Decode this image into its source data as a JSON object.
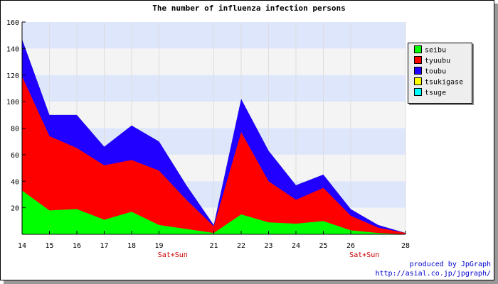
{
  "title": "The number of influenza infection persons",
  "credits": [
    "produced by JpGraph",
    "http://asial.co.jp/jpgraph/"
  ],
  "chart_data": {
    "type": "area",
    "stacked": true,
    "x": [
      14,
      15,
      16,
      17,
      18,
      19,
      20,
      21,
      22,
      23,
      24,
      25,
      26,
      27,
      28
    ],
    "xticks": [
      14,
      15,
      16,
      17,
      18,
      19,
      21,
      22,
      23,
      24,
      25,
      26,
      28
    ],
    "ylim": [
      0,
      160
    ],
    "yticks": [
      20,
      40,
      60,
      80,
      100,
      120,
      140,
      160
    ],
    "grid": true,
    "band_colors": [
      "#f4f4f4",
      "#dde6fb"
    ],
    "annotations": [
      {
        "x": 19.5,
        "text": "Sat+Sun",
        "color": "#cc0000"
      },
      {
        "x": 26.5,
        "text": "Sat+Sun",
        "color": "#cc0000"
      }
    ],
    "legend_position": "right",
    "series": [
      {
        "name": "seibu",
        "color": "#00ff00",
        "values": [
          33,
          18,
          19,
          11,
          17,
          7,
          4,
          1,
          15,
          9,
          8,
          10,
          3,
          1,
          0
        ]
      },
      {
        "name": "tyuubu",
        "color": "#ff0000",
        "values": [
          86,
          56,
          46,
          41,
          39,
          41,
          22,
          5,
          62,
          31,
          18,
          25,
          11,
          4,
          1
        ]
      },
      {
        "name": "toubu",
        "color": "#2200ff",
        "values": [
          28,
          16,
          25,
          14,
          26,
          22,
          11,
          1,
          25,
          23,
          11,
          10,
          5,
          2,
          0
        ]
      },
      {
        "name": "tsukigase",
        "color": "#ffff00",
        "values": [
          0,
          0,
          0,
          0,
          0,
          0,
          0,
          0,
          0,
          0,
          0,
          0,
          0,
          0,
          0
        ]
      },
      {
        "name": "tsuge",
        "color": "#00ffff",
        "values": [
          0,
          0,
          0,
          0,
          0,
          0,
          0,
          0,
          0,
          0,
          0,
          0,
          0,
          0,
          0
        ]
      }
    ]
  }
}
